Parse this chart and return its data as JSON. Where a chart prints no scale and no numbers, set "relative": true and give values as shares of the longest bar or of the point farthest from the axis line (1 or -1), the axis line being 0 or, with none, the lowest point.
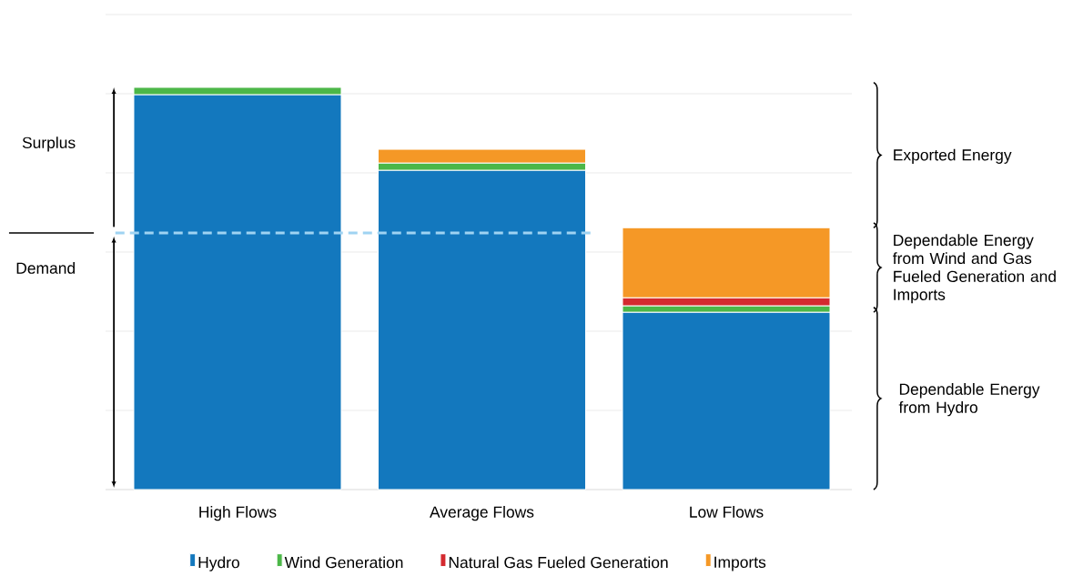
{
  "chart_data": {
    "type": "bar",
    "stacked": true,
    "relative": true,
    "grid": "y",
    "legend": "bottom",
    "categories": [
      "High Flows",
      "Average Flows",
      "Low Flows"
    ],
    "series": [
      {
        "name": "Hydro",
        "color": "#1378be",
        "values": [
          0.982,
          0.794,
          0.441
        ]
      },
      {
        "name": "Wind Generation",
        "color": "#4cb748",
        "values": [
          0.018,
          0.018,
          0.016
        ]
      },
      {
        "name": "Natural Gas Fueled Generation",
        "color": "#d42a2f",
        "values": [
          null,
          null,
          0.02
        ]
      },
      {
        "name": "Imports",
        "color": "#f59826",
        "values": [
          null,
          0.034,
          0.174
        ]
      }
    ],
    "ref_lines": [
      {
        "axis": "y",
        "value": 0.638,
        "color": "#9fd3f2",
        "line_style": "dashed"
      }
    ],
    "annotations": [
      "Surplus",
      "Demand",
      "Exported Energy",
      "Dependable Energy from Wind and Gas Fueled Generation and Imports",
      "Dependable Energy from Hydro"
    ]
  }
}
